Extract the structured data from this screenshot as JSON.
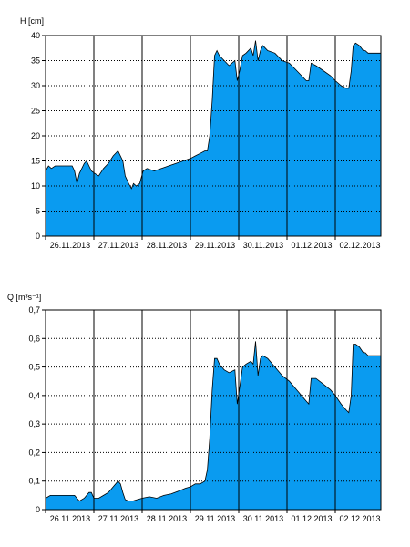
{
  "chart_data": [
    {
      "type": "area",
      "ylabel": "H [cm]",
      "ylim": [
        0,
        40
      ],
      "yticks": [
        0,
        5,
        10,
        15,
        20,
        25,
        30,
        35,
        40
      ],
      "ytick_labels": [
        "0",
        "5",
        "10",
        "15",
        "20",
        "25",
        "30",
        "35",
        "40"
      ],
      "xlim": [
        0,
        7.15
      ],
      "xtick_labels": [
        "26.11.2013",
        "27.11.2013",
        "28.11.2013",
        "29.11.2013",
        "30.11.2013",
        "01.12.2013",
        "02.12.2013"
      ],
      "fill_color": "#0a9bf0",
      "grid": true,
      "series": [
        {
          "x": [
            0,
            0.06,
            0.12,
            0.2,
            0.35,
            0.45,
            0.55,
            0.6,
            0.65,
            0.7,
            0.8,
            0.85,
            0.9,
            0.95,
            1.02,
            1.1,
            1.2,
            1.3,
            1.4,
            1.5,
            1.6,
            1.65,
            1.72,
            1.78,
            1.82,
            1.88,
            1.95,
            2.02,
            2.1,
            2.25,
            2.4,
            2.55,
            2.7,
            2.85,
            3.0,
            3.1,
            3.2,
            3.3,
            3.35,
            3.4,
            3.45,
            3.5,
            3.55,
            3.6,
            3.7,
            3.8,
            3.92,
            3.97,
            4.02,
            4.08,
            4.15,
            4.25,
            4.3,
            4.35,
            4.4,
            4.45,
            4.5,
            4.6,
            4.75,
            4.9,
            5.05,
            5.2,
            5.3,
            5.4,
            5.45,
            5.5,
            5.6,
            5.75,
            5.9,
            6.0,
            6.12,
            6.22,
            6.28,
            6.33,
            6.37,
            6.42,
            6.5,
            6.58,
            6.62,
            6.68
          ],
          "y": [
            13,
            14,
            13.5,
            14,
            14,
            14,
            14,
            13,
            10.5,
            12.5,
            14.5,
            15,
            14,
            13,
            12.5,
            12,
            13.5,
            14.5,
            16,
            17,
            15,
            12,
            10.5,
            9.5,
            10.5,
            10,
            10.5,
            13,
            13.5,
            13,
            13.5,
            14,
            14.5,
            15,
            15.5,
            16,
            16.5,
            17,
            17,
            20,
            27,
            36,
            37,
            36,
            35,
            34,
            35,
            31,
            33,
            36,
            36.5,
            37.5,
            36,
            39,
            35,
            37,
            38,
            37,
            36.5,
            35,
            34.5,
            33,
            32,
            31,
            31,
            34.5,
            34,
            33,
            32,
            31,
            30,
            29.5,
            29.5,
            33,
            38,
            38.5,
            38,
            37,
            37,
            36.5
          ]
        }
      ]
    },
    {
      "type": "area",
      "ylabel": "Q [m³s⁻¹]",
      "ylim": [
        0,
        0.7
      ],
      "yticks": [
        0,
        0.1,
        0.2,
        0.3,
        0.4,
        0.5,
        0.6,
        0.7
      ],
      "ytick_labels": [
        "0",
        "0,1",
        "0,2",
        "0,3",
        "0,4",
        "0,5",
        "0,6",
        "0,7"
      ],
      "xlim": [
        0,
        7.15
      ],
      "xtick_labels": [
        "26.11.2013",
        "27.11.2013",
        "28.11.2013",
        "29.11.2013",
        "30.11.2013",
        "01.12.2013",
        "02.12.2013"
      ],
      "fill_color": "#0a9bf0",
      "grid": true,
      "series": [
        {
          "x": [
            0,
            0.1,
            0.2,
            0.35,
            0.5,
            0.6,
            0.7,
            0.8,
            0.85,
            0.9,
            0.95,
            1.0,
            1.1,
            1.2,
            1.3,
            1.4,
            1.5,
            1.55,
            1.6,
            1.65,
            1.72,
            1.8,
            1.9,
            2.0,
            2.15,
            2.3,
            2.45,
            2.6,
            2.75,
            2.9,
            3.0,
            3.1,
            3.2,
            3.3,
            3.35,
            3.4,
            3.45,
            3.5,
            3.55,
            3.6,
            3.7,
            3.8,
            3.92,
            3.97,
            4.02,
            4.08,
            4.15,
            4.25,
            4.3,
            4.35,
            4.4,
            4.45,
            4.5,
            4.6,
            4.75,
            4.9,
            5.05,
            5.2,
            5.3,
            5.4,
            5.45,
            5.5,
            5.6,
            5.75,
            5.9,
            6.0,
            6.12,
            6.22,
            6.28,
            6.33,
            6.37,
            6.42,
            6.5,
            6.58,
            6.62,
            6.68
          ],
          "y": [
            0.04,
            0.05,
            0.05,
            0.05,
            0.05,
            0.05,
            0.03,
            0.04,
            0.05,
            0.06,
            0.06,
            0.04,
            0.04,
            0.05,
            0.06,
            0.08,
            0.1,
            0.09,
            0.06,
            0.035,
            0.03,
            0.03,
            0.035,
            0.04,
            0.045,
            0.04,
            0.05,
            0.055,
            0.065,
            0.075,
            0.08,
            0.09,
            0.09,
            0.1,
            0.14,
            0.25,
            0.42,
            0.53,
            0.53,
            0.51,
            0.49,
            0.48,
            0.49,
            0.37,
            0.43,
            0.5,
            0.51,
            0.52,
            0.51,
            0.59,
            0.47,
            0.53,
            0.54,
            0.53,
            0.5,
            0.47,
            0.45,
            0.42,
            0.4,
            0.38,
            0.37,
            0.46,
            0.46,
            0.44,
            0.42,
            0.4,
            0.37,
            0.35,
            0.34,
            0.4,
            0.58,
            0.58,
            0.57,
            0.55,
            0.55,
            0.54
          ]
        }
      ]
    }
  ]
}
